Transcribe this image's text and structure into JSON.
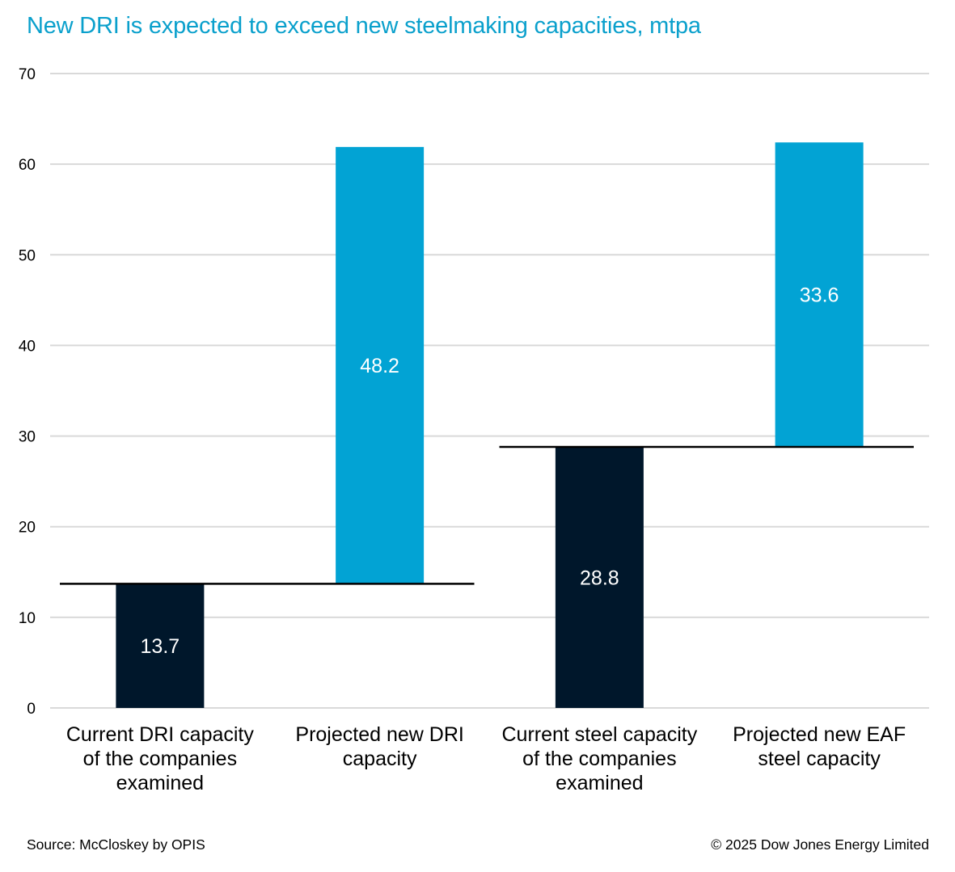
{
  "chart_data": {
    "type": "bar",
    "subtype": "waterfall",
    "title": "New DRI is expected to exceed new steelmaking capacities, mtpa",
    "xlabel": "",
    "ylabel": "",
    "ylim": [
      0,
      70
    ],
    "yticks": [
      0,
      10,
      20,
      30,
      40,
      50,
      60,
      70
    ],
    "grid": true,
    "categories": [
      [
        "Current DRI capacity",
        "of the companies",
        "examined"
      ],
      [
        "Projected new DRI",
        "capacity"
      ],
      [
        "Current steel capacity",
        "of the companies",
        "examined"
      ],
      [
        "Projected new EAF",
        "steel capacity"
      ]
    ],
    "bars": [
      {
        "base": 0,
        "value": 13.7,
        "label": "13.7",
        "color": "#00172b"
      },
      {
        "base": 13.7,
        "value": 48.2,
        "label": "48.2",
        "color": "#02a3d4"
      },
      {
        "base": 0,
        "value": 28.8,
        "label": "28.8",
        "color": "#00172b"
      },
      {
        "base": 28.8,
        "value": 33.6,
        "label": "33.6",
        "color": "#02a3d4"
      }
    ],
    "connectors": [
      {
        "level": 13.7,
        "from": 0,
        "to": 1
      },
      {
        "level": 28.8,
        "from": 2,
        "to": 3
      }
    ],
    "legend": null
  },
  "footer": {
    "source": "Source: McCloskey by OPIS",
    "copyright": "© 2025 Dow Jones Energy Limited"
  }
}
